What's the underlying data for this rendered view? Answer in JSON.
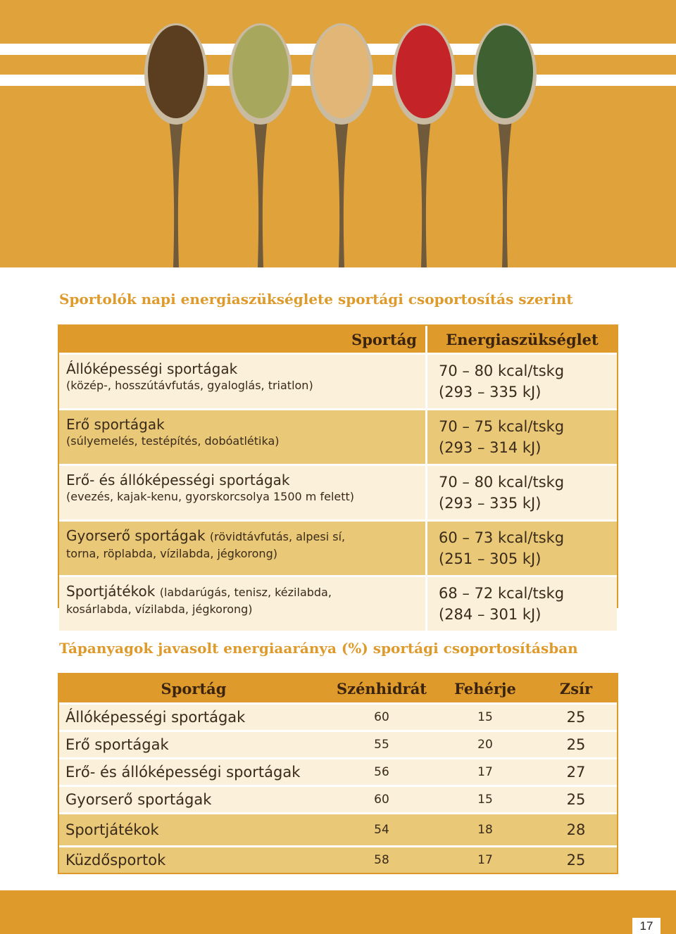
{
  "colors": {
    "accent": "#df9a2c",
    "row_light": "#fbf0d9",
    "row_dark": "#e9c877"
  },
  "banner": {
    "image": "five-spice-spoons"
  },
  "section1": {
    "title": "Sportolók napi energiaszükséglete sportági csoportosítás szerint",
    "header_sport": "Sportág",
    "header_energy": "Energiaszükséglet",
    "rows": [
      {
        "main": "Állóképességi sportágak",
        "sub": "(közép-, hosszútávfutás, gyaloglás, triatlon)",
        "kcal": "70 – 80 kcal/tskg",
        "kj": "(293 – 335 kJ)"
      },
      {
        "main": "Erő sportágak",
        "sub": "(súlyemelés, testépítés, dobóatlétika)",
        "kcal": "70 – 75 kcal/tskg",
        "kj": "(293 – 314 kJ)"
      },
      {
        "main": "Erő- és állóképességi sportágak",
        "sub": "(evezés, kajak-kenu, gyorskorcsolya 1500 m felett)",
        "kcal": "70 – 80 kcal/tskg",
        "kj": "(293 – 335 kJ)"
      },
      {
        "main": "Gyorserő sportágak",
        "sub": "(rövidtávfutás, alpesi sí,",
        "sub2": "torna, röplabda, vízilabda, jégkorong)",
        "kcal": "60 – 73 kcal/tskg",
        "kj": "(251 – 305 kJ)"
      },
      {
        "main": "Sportjátékok",
        "sub": "(labdarúgás, tenisz, kézilabda,",
        "sub2": "kosárlabda, vízilabda, jégkorong)",
        "kcal": "68 – 72 kcal/tskg",
        "kj": "(284 – 301 kJ)"
      }
    ]
  },
  "section2": {
    "title": "Tápanyagok javasolt energiaaránya (%) sportági csoportosításban",
    "headers": {
      "sport": "Sportág",
      "carb": "Szénhidrát",
      "protein": "Fehérje",
      "fat": "Zsír"
    },
    "rows": [
      {
        "name": "Állóképességi sportágak",
        "carb": "60",
        "protein": "15",
        "fat": "25"
      },
      {
        "name": "Erő sportágak",
        "carb": "55",
        "protein": "20",
        "fat": "25"
      },
      {
        "name": "Erő- és állóképességi sportágak",
        "carb": "56",
        "protein": "17",
        "fat": "27"
      },
      {
        "name": "Gyorserő sportágak",
        "carb": "60",
        "protein": "15",
        "fat": "25"
      },
      {
        "name": "Sportjátékok",
        "carb": "54",
        "protein": "18",
        "fat": "28"
      },
      {
        "name": "Küzdősportok",
        "carb": "58",
        "protein": "17",
        "fat": "25"
      }
    ]
  },
  "page_number": "17"
}
